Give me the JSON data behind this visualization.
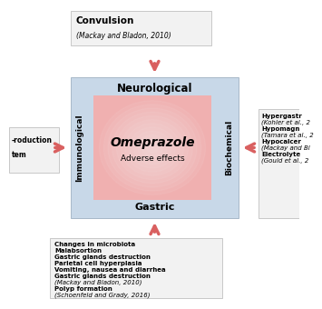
{
  "center_box_color_outer": "#f0b0b0",
  "center_box_color_inner": "#f8d0d0",
  "outer_box_color": "#c8d8e8",
  "outer_box_edge": "#a8b8c8",
  "info_box_color": "#f2f2f2",
  "info_box_edge": "#c0c0c0",
  "arrow_color": "#d96060",
  "labels": {
    "top": "Neurological",
    "bottom": "Gastric",
    "left": "Immunological",
    "right": "Biochemical"
  },
  "top_box": {
    "title": "Convulsion",
    "ref": "(Mackay and Bladon, 2010)"
  },
  "left_box_lines": [
    "-roduction",
    "tem"
  ],
  "right_box_lines": [
    [
      "Hypergastr",
      true,
      false
    ],
    [
      "(Kohler et al., 2",
      false,
      true
    ],
    [
      "Hypomagn",
      true,
      false
    ],
    [
      "(Tamara et al., 2",
      false,
      true
    ],
    [
      "Hypocalcer",
      true,
      false
    ],
    [
      "(Mackay and Bl",
      false,
      true
    ],
    [
      "Electrolyte",
      true,
      false
    ],
    [
      "(Gould et al., 2",
      false,
      true
    ]
  ],
  "bottom_box_lines": [
    [
      "Changes in microbiota",
      true,
      false
    ],
    [
      "Malabsortion",
      true,
      false
    ],
    [
      "Gastric glands destruction",
      true,
      false
    ],
    [
      "Parietal cell hyperplasia",
      true,
      false
    ],
    [
      "Vomiting, nausea and diarrhea",
      true,
      false
    ],
    [
      "Gastric glands destruction",
      true,
      false
    ],
    [
      "(Mackay and Bladon, 2010)",
      false,
      true
    ],
    [
      "Polyp formation",
      true,
      false
    ],
    [
      "(Schoenfeld and Grady, 2016)",
      false,
      true
    ]
  ],
  "bg_color": "#ffffff"
}
